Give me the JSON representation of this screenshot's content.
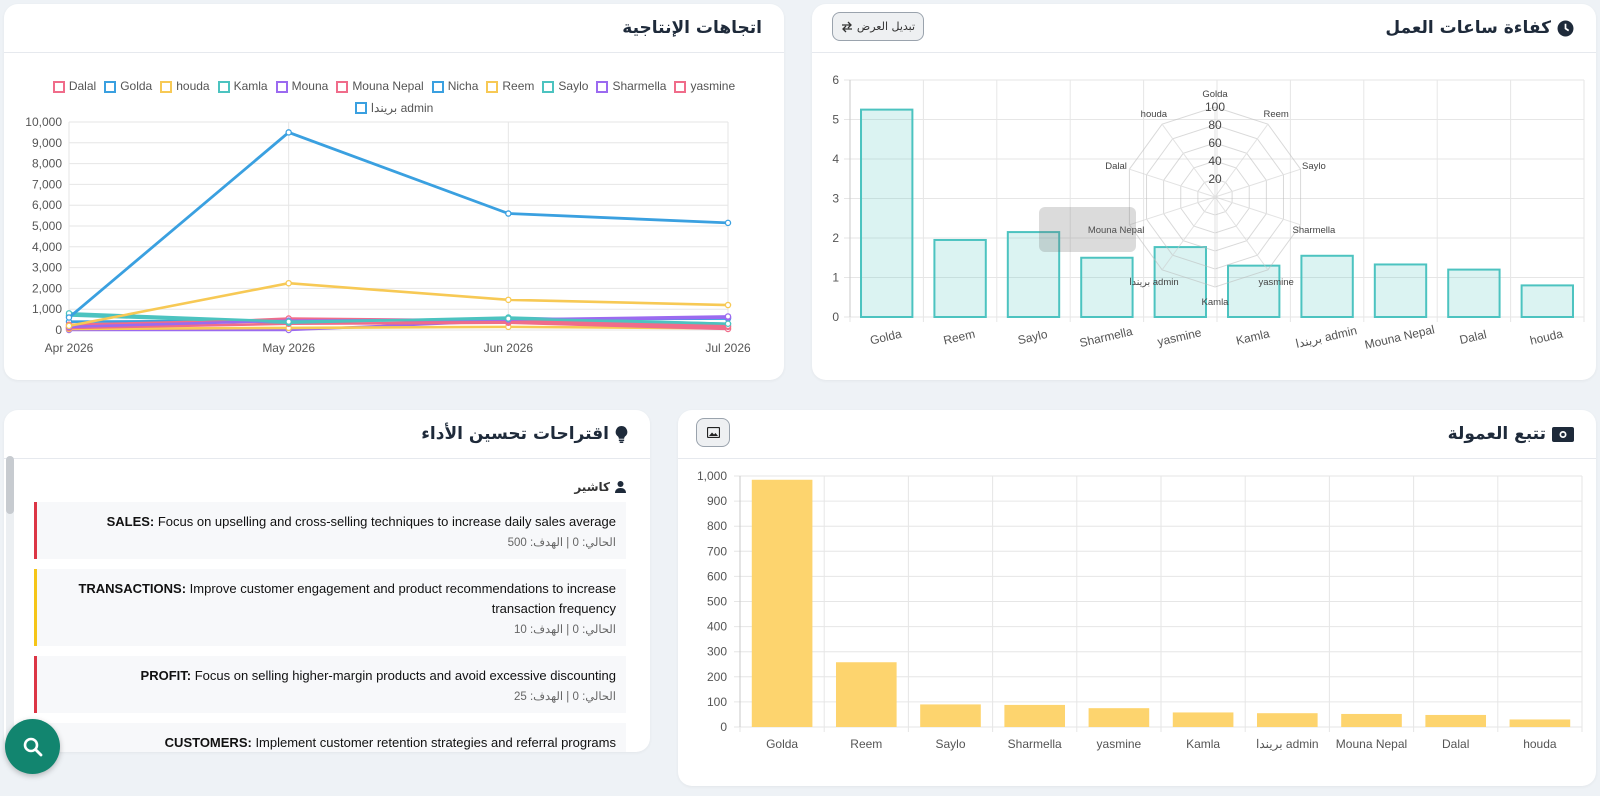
{
  "productivity": {
    "title": "اتجاهات الإنتاجية",
    "legend": [
      {
        "name": "Dalal",
        "color": "#f06c8a"
      },
      {
        "name": "Golda",
        "color": "#3aa0e0"
      },
      {
        "name": "houda",
        "color": "#f7c955"
      },
      {
        "name": "Kamla",
        "color": "#4cc3c0"
      },
      {
        "name": "Mouna",
        "color": "#9b6af0"
      },
      {
        "name": "Mouna Nepal",
        "color": "#f06c8a"
      },
      {
        "name": "Nicha",
        "color": "#3aa0e0"
      },
      {
        "name": "Reem",
        "color": "#f7c955"
      },
      {
        "name": "Saylo",
        "color": "#4cc3c0"
      },
      {
        "name": "Sharmella",
        "color": "#9b6af0"
      },
      {
        "name": "yasmine",
        "color": "#f06c8a"
      },
      {
        "name": "بريندا admin",
        "color": "#3aa0e0"
      }
    ]
  },
  "hours": {
    "title": "كفاءة ساعات العمل",
    "toggle_label": "تبديل العرض"
  },
  "commission": {
    "title": "تتبع العمولة"
  },
  "suggestions": {
    "title": "اقتراحات تحسين الأداء",
    "user": "كاشير",
    "items": [
      {
        "label": "SALES:",
        "text": " Focus on upselling and cross-selling techniques to increase daily sales average",
        "meta": "الحالي: 0 | الهدف: 500",
        "color": "#dc3545"
      },
      {
        "label": "TRANSACTIONS:",
        "text": " Improve customer engagement and product recommendations to increase transaction frequency",
        "meta": "الحالي: 0 | الهدف: 10",
        "color": "#f5c518"
      },
      {
        "label": "PROFIT:",
        "text": " Focus on selling higher-margin products and avoid excessive discounting",
        "meta": "الحالي: 0 | الهدف: 25",
        "color": "#dc3545"
      },
      {
        "label": "CUSTOMERS:",
        "text": " Implement customer retention strategies and referral programs",
        "meta": "",
        "color": "#f5c518"
      }
    ]
  },
  "chart_data": [
    {
      "type": "line",
      "x": [
        "Apr 2026",
        "May 2026",
        "Jun 2026",
        "Jul 2026"
      ],
      "ylim": [
        0,
        10000
      ],
      "yticks": [
        "0",
        "1,000",
        "2,000",
        "3,000",
        "4,000",
        "5,000",
        "6,000",
        "7,000",
        "8,000",
        "9,000",
        "10,000"
      ],
      "grid": true,
      "legend_position": "top",
      "series": [
        {
          "name": "Golda",
          "color": "#3aa0e0",
          "values": [
            600,
            9500,
            5600,
            5150
          ]
        },
        {
          "name": "Reem",
          "color": "#f7c955",
          "values": [
            200,
            2250,
            1450,
            1200
          ]
        },
        {
          "name": "Saylo",
          "color": "#4cc3c0",
          "values": [
            800,
            400,
            550,
            300
          ]
        },
        {
          "name": "Sharmella",
          "color": "#9b6af0",
          "values": [
            150,
            450,
            500,
            650
          ]
        },
        {
          "name": "yasmine",
          "color": "#f06c8a",
          "values": [
            100,
            550,
            450,
            200
          ]
        },
        {
          "name": "Kamla",
          "color": "#4cc3c0",
          "values": [
            700,
            350,
            600,
            300
          ]
        },
        {
          "name": "Mouna Nepal",
          "color": "#f06c8a",
          "values": [
            250,
            500,
            400,
            150
          ]
        },
        {
          "name": "Dalal",
          "color": "#f06c8a",
          "values": [
            100,
            300,
            350,
            50
          ]
        },
        {
          "name": "houda",
          "color": "#f7c955",
          "values": [
            50,
            100,
            150,
            80
          ]
        },
        {
          "name": "Mouna",
          "color": "#9b6af0",
          "values": [
            0,
            0,
            450,
            600
          ]
        },
        {
          "name": "Nicha",
          "color": "#3aa0e0",
          "values": [
            400,
            450,
            500,
            550
          ]
        }
      ]
    },
    {
      "type": "bar",
      "categories": [
        "Golda",
        "Reem",
        "Saylo",
        "Sharmella",
        "yasmine",
        "Kamla",
        "بريندا admin",
        "Mouna Nepal",
        "Dalal",
        "houda"
      ],
      "values": [
        5.25,
        1.95,
        2.15,
        1.5,
        1.77,
        1.3,
        1.55,
        1.33,
        1.2,
        0.8
      ],
      "ylim": [
        0,
        6
      ],
      "yticks": [
        "0",
        "1",
        "2",
        "3",
        "4",
        "5",
        "6"
      ],
      "grid": true,
      "color": "#4cc3c0"
    },
    {
      "type": "radar",
      "axes": [
        "Golda",
        "Reem",
        "Saylo",
        "Sharmella",
        "yasmine",
        "Kamla",
        "بريندا admin",
        "Mouna Nepal",
        "Dalal",
        "houda"
      ],
      "rticks": [
        "20",
        "40",
        "60",
        "80",
        "100"
      ]
    },
    {
      "type": "bar",
      "categories": [
        "Golda",
        "Reem",
        "Saylo",
        "Sharmella",
        "yasmine",
        "Kamla",
        "بريندا admin",
        "Mouna Nepal",
        "Dalal",
        "houda"
      ],
      "values": [
        985,
        258,
        90,
        88,
        75,
        58,
        55,
        52,
        48,
        30
      ],
      "ylim": [
        0,
        1000
      ],
      "yticks": [
        "0",
        "100",
        "200",
        "300",
        "400",
        "500",
        "600",
        "700",
        "800",
        "900",
        "1,000"
      ],
      "grid": true,
      "color": "#fdd46e"
    }
  ]
}
